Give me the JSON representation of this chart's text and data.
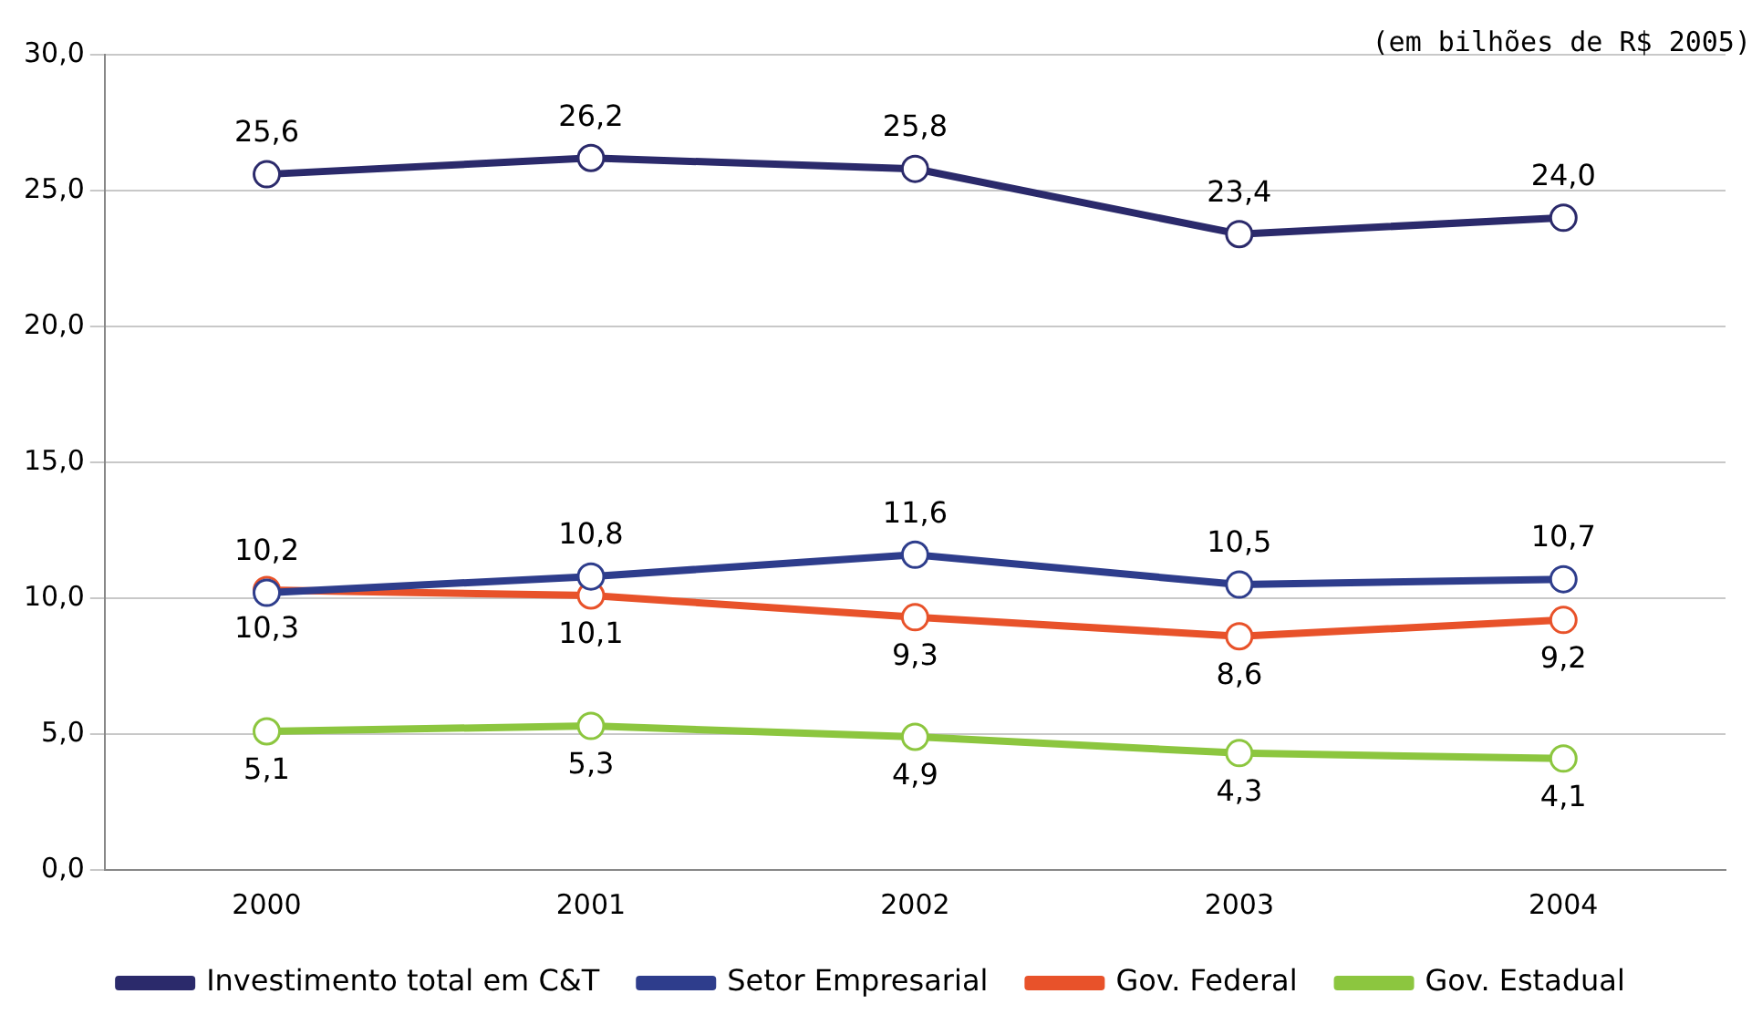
{
  "chart_data": {
    "type": "line",
    "annotations": [
      "(em bilhões de R$ 2005)"
    ],
    "categories": [
      "2000",
      "2001",
      "2002",
      "2003",
      "2004"
    ],
    "series": [
      {
        "name": "Investimento total em C&T",
        "color": "#2b2a6b",
        "values": [
          25.6,
          26.2,
          25.8,
          23.4,
          24.0
        ],
        "value_labels": [
          "25,6",
          "26,2",
          "25,8",
          "23,4",
          "24,0"
        ]
      },
      {
        "name": "Setor Empresarial",
        "color": "#2e3d8c",
        "values": [
          10.2,
          10.8,
          11.6,
          10.5,
          10.7
        ],
        "value_labels": [
          "10,2",
          "10,8",
          "11,6",
          "10,5",
          "10,7"
        ]
      },
      {
        "name": "Gov. Federal",
        "color": "#e8522a",
        "values": [
          10.3,
          10.1,
          9.3,
          8.6,
          9.2
        ],
        "value_labels": [
          "10,3",
          "10,1",
          "9,3",
          "8,6",
          "9,2"
        ]
      },
      {
        "name": "Gov. Estadual",
        "color": "#8cc63f",
        "values": [
          5.1,
          5.3,
          4.9,
          4.3,
          4.1
        ],
        "value_labels": [
          "5,1",
          "5,3",
          "4,9",
          "4,3",
          "4,1"
        ]
      }
    ],
    "ylim": [
      0,
      30
    ],
    "yticks": [
      {
        "value": 0,
        "label": "0,0"
      },
      {
        "value": 5,
        "label": "5,0"
      },
      {
        "value": 10,
        "label": "10,0"
      },
      {
        "value": 15,
        "label": "15,0"
      },
      {
        "value": 20,
        "label": "20,0"
      },
      {
        "value": 25,
        "label": "25,0"
      },
      {
        "value": 30,
        "label": "30,0"
      }
    ],
    "grid": "y",
    "legend": "bottom",
    "marker": "circle",
    "line_style": "solid"
  }
}
